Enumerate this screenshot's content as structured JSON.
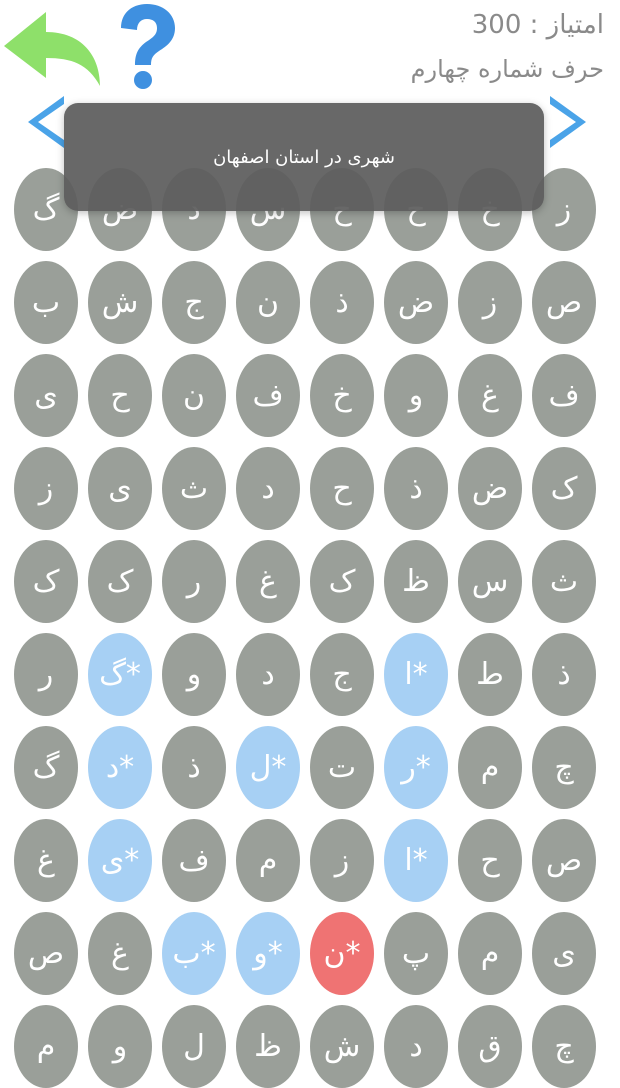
{
  "header": {
    "score_text": "امتیاز : 300",
    "subtitle": "حرف شماره چهارم",
    "back_icon": "back-arrow-icon",
    "help_icon": "question-mark-icon"
  },
  "nav": {
    "prev_icon": "chevron-left-icon",
    "next_icon": "chevron-right-icon"
  },
  "toast": {
    "text": "شهری در استان اصفهان"
  },
  "colors": {
    "cell": "#9a9f99",
    "selected": "#a7d0f4",
    "current": "#ef7373",
    "arrow_green": "#8ee06a",
    "accent_blue": "#3f90e0"
  },
  "grid": {
    "rows": [
      [
        {
          "t": "گ"
        },
        {
          "t": "ض"
        },
        {
          "t": "د"
        },
        {
          "t": "س"
        },
        {
          "t": "ح"
        },
        {
          "t": "ح"
        },
        {
          "t": "خ"
        },
        {
          "t": "ز"
        }
      ],
      [
        {
          "t": "ب"
        },
        {
          "t": "ش"
        },
        {
          "t": "ج"
        },
        {
          "t": "ن"
        },
        {
          "t": "ذ"
        },
        {
          "t": "ض"
        },
        {
          "t": "ز"
        },
        {
          "t": "ص"
        }
      ],
      [
        {
          "t": "ی"
        },
        {
          "t": "ح"
        },
        {
          "t": "ن"
        },
        {
          "t": "ف"
        },
        {
          "t": "خ"
        },
        {
          "t": "و"
        },
        {
          "t": "غ"
        },
        {
          "t": "ف"
        }
      ],
      [
        {
          "t": "ز"
        },
        {
          "t": "ی"
        },
        {
          "t": "ث"
        },
        {
          "t": "د"
        },
        {
          "t": "ح"
        },
        {
          "t": "ذ"
        },
        {
          "t": "ض"
        },
        {
          "t": "ک"
        }
      ],
      [
        {
          "t": "ک"
        },
        {
          "t": "ک"
        },
        {
          "t": "ر"
        },
        {
          "t": "غ"
        },
        {
          "t": "ک"
        },
        {
          "t": "ظ"
        },
        {
          "t": "س"
        },
        {
          "t": "ث"
        }
      ],
      [
        {
          "t": "ر"
        },
        {
          "t": "گ*",
          "s": "sel"
        },
        {
          "t": "و"
        },
        {
          "t": "د"
        },
        {
          "t": "ج"
        },
        {
          "t": "ا*",
          "s": "sel"
        },
        {
          "t": "ط"
        },
        {
          "t": "ذ"
        }
      ],
      [
        {
          "t": "گ"
        },
        {
          "t": "د*",
          "s": "sel"
        },
        {
          "t": "ذ"
        },
        {
          "t": "ل*",
          "s": "sel"
        },
        {
          "t": "ت"
        },
        {
          "t": "ر*",
          "s": "sel"
        },
        {
          "t": "م"
        },
        {
          "t": "چ"
        }
      ],
      [
        {
          "t": "غ"
        },
        {
          "t": "ی*",
          "s": "sel"
        },
        {
          "t": "ف"
        },
        {
          "t": "م"
        },
        {
          "t": "ز"
        },
        {
          "t": "ا*",
          "s": "sel"
        },
        {
          "t": "ح"
        },
        {
          "t": "ص"
        }
      ],
      [
        {
          "t": "ص"
        },
        {
          "t": "غ"
        },
        {
          "t": "ب*",
          "s": "sel"
        },
        {
          "t": "و*",
          "s": "sel"
        },
        {
          "t": "ن*",
          "s": "cur"
        },
        {
          "t": "پ"
        },
        {
          "t": "م"
        },
        {
          "t": "ی"
        }
      ],
      [
        {
          "t": "م"
        },
        {
          "t": "و"
        },
        {
          "t": "ل"
        },
        {
          "t": "ظ"
        },
        {
          "t": "ش"
        },
        {
          "t": "د"
        },
        {
          "t": "ق"
        },
        {
          "t": "چ"
        }
      ]
    ]
  }
}
